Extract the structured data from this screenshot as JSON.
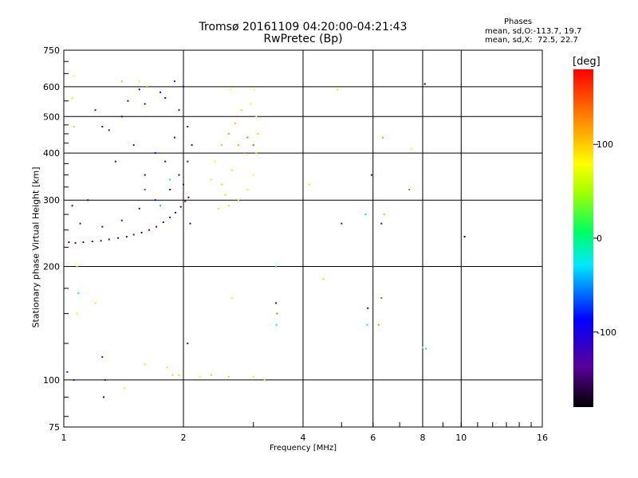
{
  "chart_data": {
    "type": "scatter",
    "title": "Tromsø 20161109 04:20:00-04:21:43",
    "subtitle": "RwPretec (Bp)",
    "stats_header": "Phases",
    "stats_o": "mean, sd,O:-113.7, 19.7",
    "stats_x": "mean, sd,X:  72.5, 22.7",
    "xlabel": "Frequency [MHz]",
    "ylabel": "Stationary phase Virtual Height [km]",
    "x_scale": "log",
    "y_scale": "log",
    "xlim": [
      1,
      16
    ],
    "ylim": [
      75,
      750
    ],
    "x_ticks": [
      1,
      2,
      4,
      6,
      8,
      10,
      16
    ],
    "x_tick_labels": [
      "1",
      "2",
      "4",
      "6",
      "8",
      "10",
      "16"
    ],
    "y_ticks": [
      75,
      100,
      200,
      300,
      400,
      500,
      600,
      750
    ],
    "y_tick_labels": [
      "75",
      "100",
      "200",
      "300",
      "400",
      "500",
      "600",
      "750"
    ],
    "grid": true,
    "colorbar": {
      "unit": "[deg]",
      "range": [
        -180,
        180
      ],
      "ticks": [
        100,
        0,
        -100
      ],
      "tick_labels": [
        "100",
        "0",
        "-100"
      ]
    },
    "series": [
      {
        "trace": "o-mode-lower-edge",
        "points": [
          [
            1.03,
            232,
            -150
          ],
          [
            1.07,
            231,
            -140
          ],
          [
            1.12,
            232,
            -145
          ],
          [
            1.18,
            233,
            -150
          ],
          [
            1.24,
            234,
            -140
          ],
          [
            1.3,
            236,
            -150
          ],
          [
            1.37,
            238,
            -145
          ],
          [
            1.44,
            240,
            -150
          ],
          [
            1.5,
            243,
            -140
          ],
          [
            1.57,
            246,
            -150
          ],
          [
            1.64,
            250,
            -145
          ],
          [
            1.71,
            255,
            -150
          ],
          [
            1.78,
            262,
            -140
          ],
          [
            1.85,
            270,
            -150
          ],
          [
            1.91,
            278,
            -145
          ],
          [
            1.97,
            288,
            -150
          ],
          [
            2.02,
            298,
            -140
          ],
          [
            2.06,
            305,
            -150
          ]
        ]
      },
      {
        "trace": "o-mode-cluster",
        "points": [
          [
            1.1,
            260,
            -120
          ],
          [
            1.25,
            255,
            -110
          ],
          [
            1.4,
            265,
            -115
          ],
          [
            1.55,
            285,
            -105
          ],
          [
            1.7,
            300,
            -90
          ],
          [
            1.85,
            320,
            -110
          ],
          [
            1.95,
            350,
            -100
          ],
          [
            2.05,
            380,
            -115
          ],
          [
            2.1,
            420,
            -105
          ],
          [
            2.05,
            470,
            -120
          ],
          [
            1.95,
            520,
            -110
          ],
          [
            1.8,
            560,
            -115
          ],
          [
            1.6,
            540,
            -100
          ],
          [
            1.4,
            500,
            -110
          ],
          [
            1.3,
            460,
            -115
          ],
          [
            1.5,
            420,
            -120
          ],
          [
            1.7,
            400,
            -110
          ],
          [
            1.9,
            440,
            -105
          ],
          [
            2.0,
            600,
            -115
          ],
          [
            1.9,
            620,
            -110
          ],
          [
            1.75,
            580,
            -100
          ],
          [
            1.55,
            590,
            -120
          ],
          [
            1.45,
            550,
            -110
          ],
          [
            1.25,
            470,
            -115
          ],
          [
            1.35,
            380,
            -110
          ],
          [
            1.6,
            350,
            -105
          ],
          [
            1.8,
            380,
            -100
          ],
          [
            2.0,
            330,
            -115
          ],
          [
            1.15,
            300,
            -110
          ],
          [
            1.05,
            290,
            -105
          ],
          [
            1.6,
            320,
            -60
          ],
          [
            1.75,
            290,
            -40
          ],
          [
            1.85,
            340,
            -20
          ],
          [
            2.08,
            260,
            -150
          ]
        ]
      },
      {
        "trace": "x-mode-cluster",
        "points": [
          [
            2.45,
            285,
            60
          ],
          [
            2.6,
            290,
            55
          ],
          [
            2.75,
            300,
            65
          ],
          [
            2.9,
            320,
            70
          ],
          [
            3.0,
            350,
            80
          ],
          [
            3.05,
            400,
            90
          ],
          [
            3.08,
            450,
            100
          ],
          [
            3.05,
            500,
            85
          ],
          [
            2.95,
            540,
            75
          ],
          [
            2.8,
            520,
            95
          ],
          [
            2.7,
            480,
            110
          ],
          [
            2.6,
            450,
            120
          ],
          [
            2.5,
            420,
            105
          ],
          [
            2.4,
            380,
            80
          ],
          [
            2.35,
            340,
            60
          ],
          [
            2.5,
            330,
            100
          ],
          [
            2.65,
            360,
            90
          ],
          [
            2.85,
            400,
            130
          ],
          [
            2.9,
            440,
            140
          ],
          [
            3.0,
            420,
            150
          ],
          [
            2.75,
            420,
            115
          ],
          [
            2.55,
            310,
            50
          ]
        ]
      },
      {
        "trace": "isolated",
        "points": [
          [
            1.06,
            640,
            80
          ],
          [
            1.05,
            560,
            70
          ],
          [
            1.06,
            470,
            100
          ],
          [
            1.2,
            520,
            -110
          ],
          [
            1.4,
            620,
            110
          ],
          [
            1.55,
            620,
            85
          ],
          [
            1.62,
            600,
            120
          ],
          [
            2.62,
            590,
            80
          ],
          [
            3.02,
            590,
            80
          ],
          [
            4.88,
            590,
            90
          ],
          [
            8.1,
            610,
            -170
          ],
          [
            6.35,
            440,
            120
          ],
          [
            5.95,
            350,
            -120
          ],
          [
            4.15,
            330,
            90
          ],
          [
            7.5,
            410,
            80
          ],
          [
            7.4,
            320,
            140
          ],
          [
            10.2,
            240,
            -170
          ],
          [
            5.0,
            260,
            -140
          ],
          [
            5.75,
            275,
            -30
          ],
          [
            6.3,
            260,
            -120
          ],
          [
            6.4,
            275,
            110
          ],
          [
            1.08,
            200,
            60
          ],
          [
            1.09,
            170,
            -30
          ],
          [
            1.2,
            160,
            90
          ],
          [
            1.08,
            150,
            70
          ],
          [
            1.06,
            100,
            -120
          ],
          [
            1.02,
            105,
            -120
          ],
          [
            1.27,
            100,
            -110
          ],
          [
            1.42,
            95,
            70
          ],
          [
            1.26,
            90,
            -100
          ],
          [
            1.6,
            110,
            90
          ],
          [
            1.82,
            108,
            90
          ],
          [
            1.88,
            103,
            100
          ],
          [
            1.95,
            103,
            95
          ],
          [
            2.2,
            102,
            80
          ],
          [
            2.35,
            103,
            100
          ],
          [
            2.6,
            102,
            100
          ],
          [
            3.0,
            102,
            90
          ],
          [
            3.2,
            100,
            60
          ],
          [
            3.42,
            200,
            -20
          ],
          [
            3.43,
            140,
            -10
          ],
          [
            3.44,
            150,
            140
          ],
          [
            3.42,
            160,
            -150
          ],
          [
            4.5,
            185,
            100
          ],
          [
            5.8,
            140,
            -20
          ],
          [
            5.82,
            155,
            -110
          ],
          [
            6.2,
            140,
            120
          ],
          [
            6.3,
            165,
            150
          ],
          [
            8.0,
            122,
            60
          ],
          [
            8.15,
            121,
            -20
          ],
          [
            1.25,
            115,
            -120
          ],
          [
            2.05,
            125,
            -130
          ],
          [
            2.65,
            165,
            80
          ]
        ]
      }
    ]
  }
}
